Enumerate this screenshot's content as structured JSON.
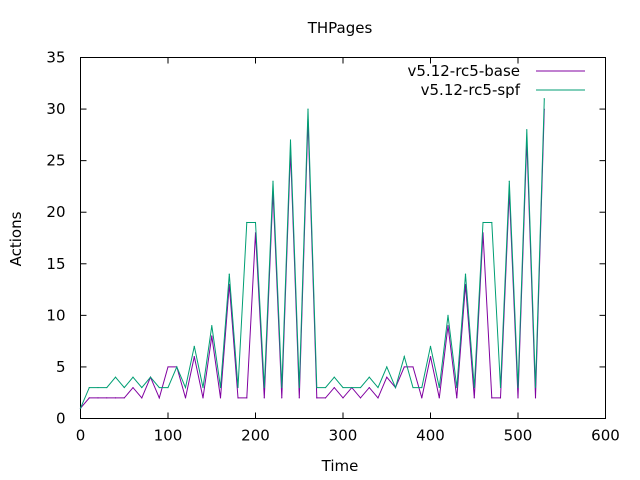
{
  "chart_data": {
    "type": "line",
    "title": "THPages",
    "xlabel": "Time",
    "ylabel": "Actions",
    "xlim": [
      0,
      600
    ],
    "ylim": [
      0,
      35
    ],
    "xticks": [
      0,
      100,
      200,
      300,
      400,
      500,
      600
    ],
    "yticks": [
      0,
      5,
      10,
      15,
      20,
      25,
      30,
      35
    ],
    "grid": false,
    "legend_position": "top-right",
    "series": [
      {
        "name": "v5.12-rc5-base",
        "color": "#8000a0",
        "x": [
          0,
          10,
          20,
          30,
          40,
          50,
          60,
          70,
          80,
          90,
          100,
          110,
          120,
          130,
          140,
          150,
          160,
          170,
          180,
          190,
          200,
          210,
          220,
          230,
          240,
          250,
          260,
          270,
          280,
          290,
          300,
          310,
          320,
          330,
          340,
          350,
          360,
          370,
          380,
          390,
          400,
          410,
          420,
          430,
          440,
          450,
          460,
          470,
          480,
          490,
          500,
          510,
          520,
          530
        ],
        "y": [
          1,
          2,
          2,
          2,
          2,
          2,
          3,
          2,
          4,
          2,
          5,
          5,
          2,
          6,
          2,
          8,
          2,
          13,
          2,
          2,
          18,
          2,
          22,
          2,
          26,
          2,
          29,
          2,
          2,
          3,
          2,
          3,
          2,
          3,
          2,
          4,
          3,
          5,
          5,
          2,
          6,
          2,
          9,
          2,
          13,
          2,
          18,
          2,
          2,
          22,
          2,
          27,
          2,
          30
        ]
      },
      {
        "name": "v5.12-rc5-spf",
        "color": "#009e73",
        "x": [
          0,
          10,
          20,
          30,
          40,
          50,
          60,
          70,
          80,
          90,
          100,
          110,
          120,
          130,
          140,
          150,
          160,
          170,
          180,
          190,
          200,
          210,
          220,
          230,
          240,
          250,
          260,
          270,
          280,
          290,
          300,
          310,
          320,
          330,
          340,
          350,
          360,
          370,
          380,
          390,
          400,
          410,
          420,
          430,
          440,
          450,
          460,
          470,
          480,
          490,
          500,
          510,
          520,
          530
        ],
        "y": [
          1,
          3,
          3,
          3,
          4,
          3,
          4,
          3,
          4,
          3,
          3,
          5,
          3,
          7,
          3,
          9,
          3,
          14,
          3,
          19,
          19,
          3,
          23,
          3,
          27,
          3,
          30,
          3,
          3,
          4,
          3,
          3,
          3,
          4,
          3,
          5,
          3,
          6,
          3,
          3,
          7,
          3,
          10,
          3,
          14,
          3,
          19,
          19,
          3,
          23,
          3,
          28,
          3,
          31
        ]
      }
    ]
  }
}
